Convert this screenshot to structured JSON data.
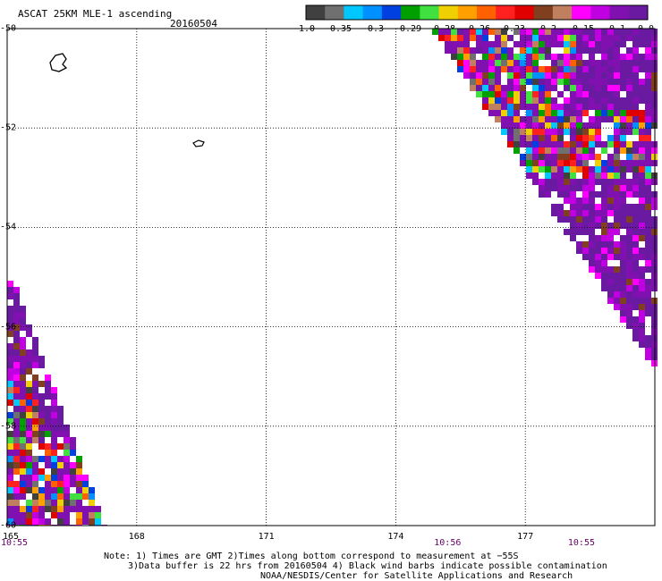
{
  "header": {
    "title": "ASCAT 25KM MLE-1 ascending",
    "date": "20160504"
  },
  "colorbar": {
    "colors": [
      "#404040",
      "#707070",
      "#00c8ff",
      "#0090ff",
      "#0040e0",
      "#00a000",
      "#40e040",
      "#f0d000",
      "#ffa000",
      "#ff6000",
      "#ff2020",
      "#e00000",
      "#804020",
      "#c08060",
      "#ff00ff",
      "#c000e0",
      "#8010b0",
      "#6a1aa0"
    ],
    "labels": [
      "−1.0",
      "−0.35",
      "−0.3",
      "−0.29",
      "−0.28",
      "−0.26",
      "−0.23",
      "−0.2",
      "−0.15",
      "−0.1",
      "0.0"
    ]
  },
  "map": {
    "lon_range": [
      165,
      180
    ],
    "lat_range": [
      -60,
      -50
    ],
    "lon_ticks": [
      "165",
      "168",
      "171",
      "174",
      "177"
    ],
    "lat_ticks": [
      "-50",
      "-52",
      "-54",
      "-56",
      "-58",
      "-60"
    ],
    "lat_tick_values": [
      -50,
      -52,
      -54,
      -56,
      -58,
      -60
    ],
    "lon_tick_values": [
      165,
      168,
      171,
      174,
      177
    ],
    "time_labels": [
      {
        "lon": 165,
        "text": "10:55"
      },
      {
        "lon": 175.2,
        "text": "10:56"
      },
      {
        "lon": 178.3,
        "text": "10:55"
      }
    ]
  },
  "notes": {
    "line1": "Note: 1) Times are GMT 2)Times along bottom correspond to measurement at −55S",
    "line2": "3)Data buffer is 22 hrs from 20160504 4) Black wind barbs indicate possible contamination",
    "line3": "NOAA/NESDIS/Center for Satellite Applications and Research"
  }
}
